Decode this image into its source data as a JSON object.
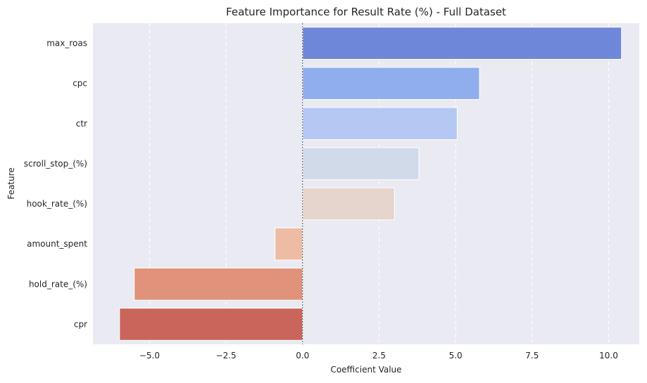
{
  "chart_data": {
    "type": "bar",
    "orientation": "horizontal",
    "title": "Feature Importance for Result Rate (%) - Full Dataset",
    "xlabel": "Coefficient Value",
    "ylabel": "Feature",
    "categories": [
      "max_roas",
      "cpc",
      "ctr",
      "scroll_stop_(%)",
      "hook_rate_(%)",
      "amount_spent",
      "hold_rate_(%)",
      "cpr"
    ],
    "values": [
      10.42,
      5.78,
      5.05,
      3.8,
      3.0,
      -0.9,
      -5.5,
      -5.98
    ],
    "colors": [
      "#6f87d8",
      "#90aeee",
      "#b4c8f3",
      "#d1dae8",
      "#e6d5cc",
      "#eebca5",
      "#e0937a",
      "#c9655a"
    ],
    "xlim": [
      -6.85,
      11.0
    ],
    "xticks": [
      -5.0,
      -2.5,
      0.0,
      2.5,
      5.0,
      7.5,
      10.0
    ],
    "xtick_labels": [
      "−5.0",
      "−2.5",
      "0.0",
      "2.5",
      "5.0",
      "7.5",
      "10.0"
    ],
    "grid": true,
    "grid_style": "dashed vertical",
    "reference_line": 0,
    "background": "#eaeaf2"
  }
}
